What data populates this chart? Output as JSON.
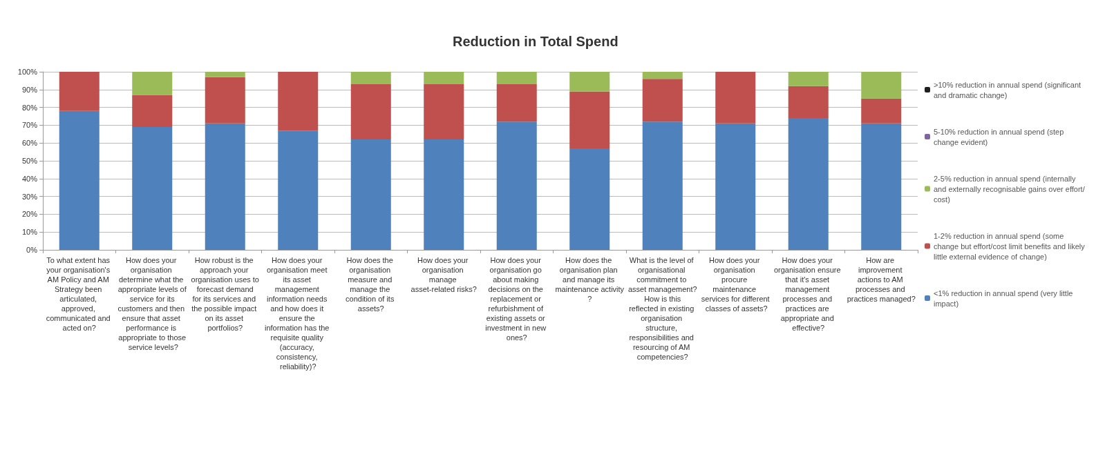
{
  "chart_data": {
    "type": "bar",
    "title": "Reduction in Total Spend",
    "stacked": true,
    "categories": [
      "To what extent has your organisation's AM Policy and AM Strategy been articulated, approved, communicated and acted on?",
      "How does your organisation determine what the appropriate levels of service for its customers and then ensure that asset performance is appropriate to those service levels?",
      "How robust is the approach your organisation uses to forecast demand for its services and the possible impact on its asset portfolios?",
      "How does your organisation meet its asset management information needs and how does it ensure the information has the requisite quality (accuracy, consistency, reliability)?",
      "How does the organisation measure and manage the condition of its assets?",
      "How does your organisation manage asset-related risks?",
      "How does your organisation go about making decisions on the replacement or refurbishment of existing assets or investment in new ones?",
      "How does the organisation plan and manage its maintenance activity?",
      "What is the level of organisational commitment to asset management? How is this reflected in existing organisation structure, responsibilities and resourcing of AM competencies?",
      "How does your organisation procure maintenance services for different classes of assets?",
      "How does your organisation ensure that it's asset management processes and practices are appropriate and effective?",
      "How are improvement actions to AM processes and practices managed?"
    ],
    "series": [
      {
        "name": "<1% reduction in annual spend (very little impact)",
        "color": "#4f81bd",
        "values": [
          78,
          69,
          71,
          67,
          62,
          62,
          72,
          57,
          72,
          71,
          74,
          71
        ]
      },
      {
        "name": "1-2% reduction in annual spend (some change but effort/cost limit benefits and likely little external evidence of change)",
        "color": "#c0504d",
        "values": [
          22,
          18,
          26,
          33,
          31,
          31,
          21,
          32,
          24,
          29,
          18,
          14
        ]
      },
      {
        "name": "2-5% reduction in annual spend (internally and externally recognisable gains over effort/cost)",
        "color": "#9bbb59",
        "values": [
          0,
          13,
          3,
          0,
          7,
          7,
          7,
          11,
          4,
          0,
          8,
          15
        ]
      },
      {
        "name": "5-10% reduction in annual spend (step change evident)",
        "color": "#8064a2",
        "values": [
          0,
          0,
          0,
          0,
          0,
          0,
          0,
          0,
          0,
          0,
          0,
          0
        ]
      },
      {
        "name": ">10% reduction in annual spend (significant and dramatic change)",
        "color": "#1f1f1f",
        "values": [
          0,
          0,
          0,
          0,
          0,
          0,
          0,
          0,
          0,
          0,
          0,
          0
        ]
      }
    ],
    "ylim": [
      0,
      100
    ],
    "yticks": [
      {
        "value": 0,
        "label": "0%"
      },
      {
        "value": 10,
        "label": "10%"
      },
      {
        "value": 20,
        "label": "20%"
      },
      {
        "value": 30,
        "label": "30%"
      },
      {
        "value": 40,
        "label": "40%"
      },
      {
        "value": 50,
        "label": "50%"
      },
      {
        "value": 60,
        "label": "60%"
      },
      {
        "value": 70,
        "label": "70%"
      },
      {
        "value": 80,
        "label": "80%"
      },
      {
        "value": 90,
        "label": "90%"
      },
      {
        "value": 100,
        "label": "100%"
      }
    ],
    "grid": "y",
    "legend": "right"
  }
}
